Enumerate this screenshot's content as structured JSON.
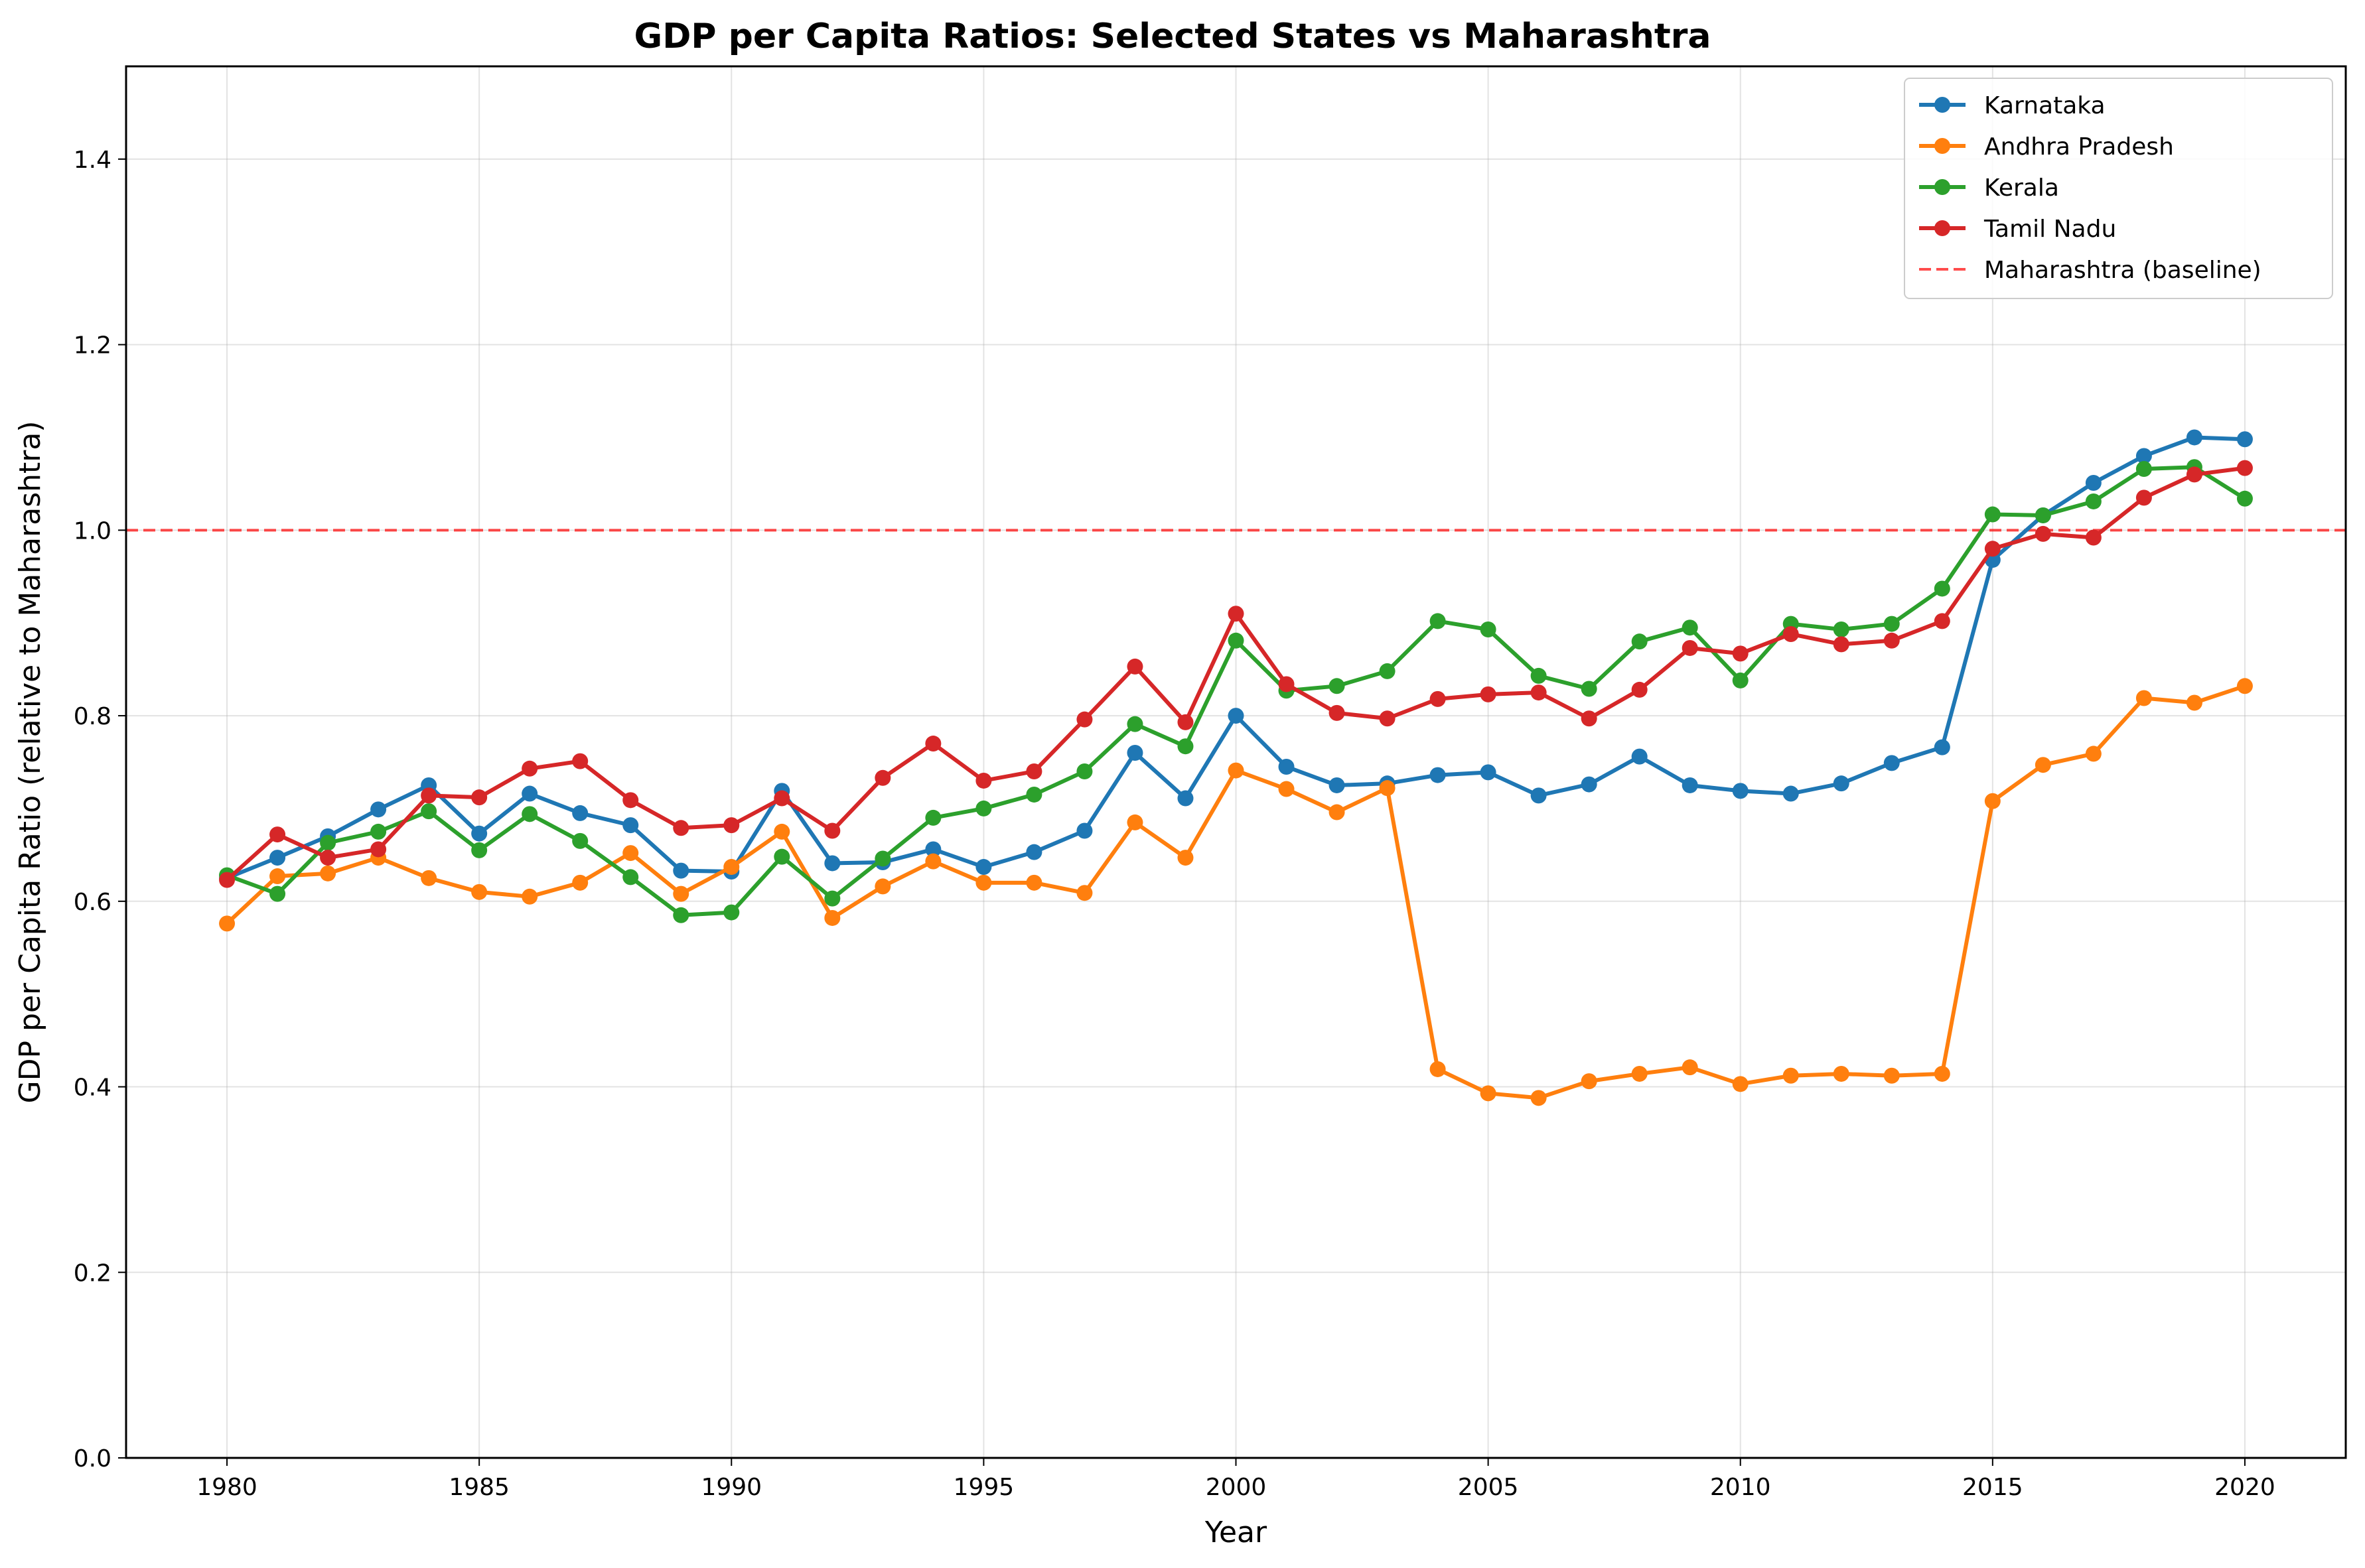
{
  "chart_data": {
    "type": "line",
    "title": "GDP per Capita Ratios: Selected States vs Maharashtra",
    "xlabel": "Year",
    "ylabel": "GDP per Capita Ratio (relative to Maharashtra)",
    "xlim": [
      1978,
      2022
    ],
    "ylim": [
      0,
      1.5
    ],
    "xticks": [
      "1980",
      "1985",
      "1990",
      "1995",
      "2000",
      "2005",
      "2010",
      "2015",
      "2020"
    ],
    "yticks": [
      "0.0",
      "0.2",
      "0.4",
      "0.6",
      "0.8",
      "1.0",
      "1.2",
      "1.4"
    ],
    "grid": true,
    "legend_position": "top-right",
    "x": [
      1980,
      1981,
      1982,
      1983,
      1984,
      1985,
      1986,
      1987,
      1988,
      1989,
      1990,
      1991,
      1992,
      1993,
      1994,
      1995,
      1996,
      1997,
      1998,
      1999,
      2000,
      2001,
      2002,
      2003,
      2004,
      2005,
      2006,
      2007,
      2008,
      2009,
      2010,
      2011,
      2012,
      2013,
      2014,
      2015,
      2016,
      2017,
      2018,
      2019,
      2020
    ],
    "series": [
      {
        "name": "Karnataka",
        "color": "#1f77b4",
        "values": [
          0.625,
          0.647,
          0.67,
          0.699,
          0.725,
          0.673,
          0.716,
          0.695,
          0.682,
          0.633,
          0.632,
          0.719,
          0.641,
          0.642,
          0.656,
          0.637,
          0.653,
          0.676,
          0.76,
          0.711,
          0.8,
          0.745,
          0.725,
          0.727,
          0.736,
          0.739,
          0.714,
          0.726,
          0.756,
          0.725,
          0.719,
          0.716,
          0.727,
          0.749,
          0.766,
          0.968,
          1.016,
          1.051,
          1.08,
          1.1,
          1.098
        ]
      },
      {
        "name": "Andhra Pradesh",
        "color": "#ff7f0e",
        "values": [
          0.576,
          0.627,
          0.63,
          0.647,
          0.625,
          0.61,
          0.605,
          0.62,
          0.652,
          0.608,
          0.637,
          0.675,
          0.582,
          0.616,
          0.643,
          0.62,
          0.62,
          0.609,
          0.685,
          0.647,
          0.741,
          0.721,
          0.696,
          0.722,
          0.419,
          0.393,
          0.388,
          0.406,
          0.414,
          0.421,
          0.403,
          0.412,
          0.414,
          0.412,
          0.414,
          0.708,
          0.747,
          0.759,
          0.819,
          0.814,
          0.832
        ]
      },
      {
        "name": "Kerala",
        "color": "#2ca02c",
        "values": [
          0.628,
          0.608,
          0.663,
          0.675,
          0.697,
          0.655,
          0.694,
          0.665,
          0.626,
          0.585,
          0.588,
          0.648,
          0.603,
          0.646,
          0.69,
          0.7,
          0.715,
          0.74,
          0.791,
          0.767,
          0.881,
          0.827,
          0.832,
          0.848,
          0.902,
          0.893,
          0.843,
          0.829,
          0.88,
          0.895,
          0.838,
          0.899,
          0.893,
          0.899,
          0.937,
          1.017,
          1.016,
          1.031,
          1.066,
          1.068,
          1.034
        ]
      },
      {
        "name": "Tamil Nadu",
        "color": "#d62728",
        "values": [
          0.623,
          0.672,
          0.647,
          0.656,
          0.714,
          0.712,
          0.743,
          0.751,
          0.709,
          0.679,
          0.682,
          0.711,
          0.676,
          0.733,
          0.77,
          0.73,
          0.74,
          0.796,
          0.853,
          0.793,
          0.91,
          0.834,
          0.803,
          0.797,
          0.818,
          0.823,
          0.825,
          0.797,
          0.828,
          0.873,
          0.867,
          0.888,
          0.877,
          0.881,
          0.902,
          0.98,
          0.996,
          0.992,
          1.035,
          1.06,
          1.067
        ]
      }
    ],
    "reference_lines": [
      {
        "name": "Maharashtra (baseline)",
        "y": 1.0,
        "color": "#ff0000",
        "style": "dashed"
      }
    ]
  }
}
